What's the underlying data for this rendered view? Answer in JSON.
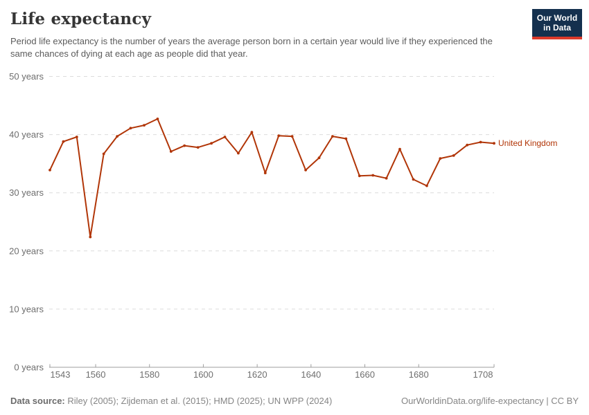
{
  "header": {
    "title": "Life expectancy",
    "subtitle": "Period life expectancy is the number of years the average person born in a certain year would live if they experienced the same chances of dying at each age as people did that year.",
    "logo": {
      "line1": "Our World",
      "line2": "in Data"
    }
  },
  "chart_data": {
    "type": "line",
    "title": "Life expectancy",
    "xlabel": "",
    "ylabel": "",
    "xlim": [
      1543,
      1708
    ],
    "ylim": [
      0,
      50
    ],
    "x_ticks": [
      1543,
      1560,
      1580,
      1600,
      1620,
      1640,
      1660,
      1680,
      1708
    ],
    "y_ticks": [
      0,
      10,
      20,
      30,
      40,
      50
    ],
    "y_tick_suffix": " years",
    "grid": "horizontal-dashed",
    "legend_position": "right-of-line",
    "series": [
      {
        "name": "United Kingdom",
        "color": "#B13507",
        "x": [
          1543,
          1548,
          1553,
          1558,
          1563,
          1568,
          1573,
          1578,
          1583,
          1588,
          1593,
          1598,
          1603,
          1608,
          1613,
          1618,
          1623,
          1628,
          1633,
          1638,
          1643,
          1648,
          1653,
          1658,
          1663,
          1668,
          1673,
          1678,
          1683,
          1688,
          1693,
          1698,
          1703,
          1708
        ],
        "values": [
          33.9,
          38.8,
          39.6,
          22.4,
          36.7,
          39.7,
          41.1,
          41.6,
          42.7,
          37.1,
          38.1,
          37.8,
          38.5,
          39.6,
          36.8,
          40.4,
          33.4,
          39.8,
          39.7,
          33.9,
          36.0,
          39.7,
          39.3,
          32.9,
          33.0,
          32.5,
          37.5,
          32.3,
          31.2,
          35.9,
          36.4,
          38.2,
          38.7,
          38.5
        ]
      }
    ]
  },
  "colors": {
    "series": "#B13507",
    "grid": "#dcdcdc",
    "axis": "#9e9e9e",
    "tick_label": "#6e6e6e",
    "logo_bg": "#14304e",
    "logo_stripe": "#dc3a2b"
  },
  "footer": {
    "datasource_label": "Data source:",
    "datasource_text": " Riley (2005); Zijdeman et al. (2015); HMD (2025); UN WPP (2024)",
    "link": "OurWorldinData.org/life-expectancy",
    "separator": " | ",
    "license": "CC BY"
  }
}
